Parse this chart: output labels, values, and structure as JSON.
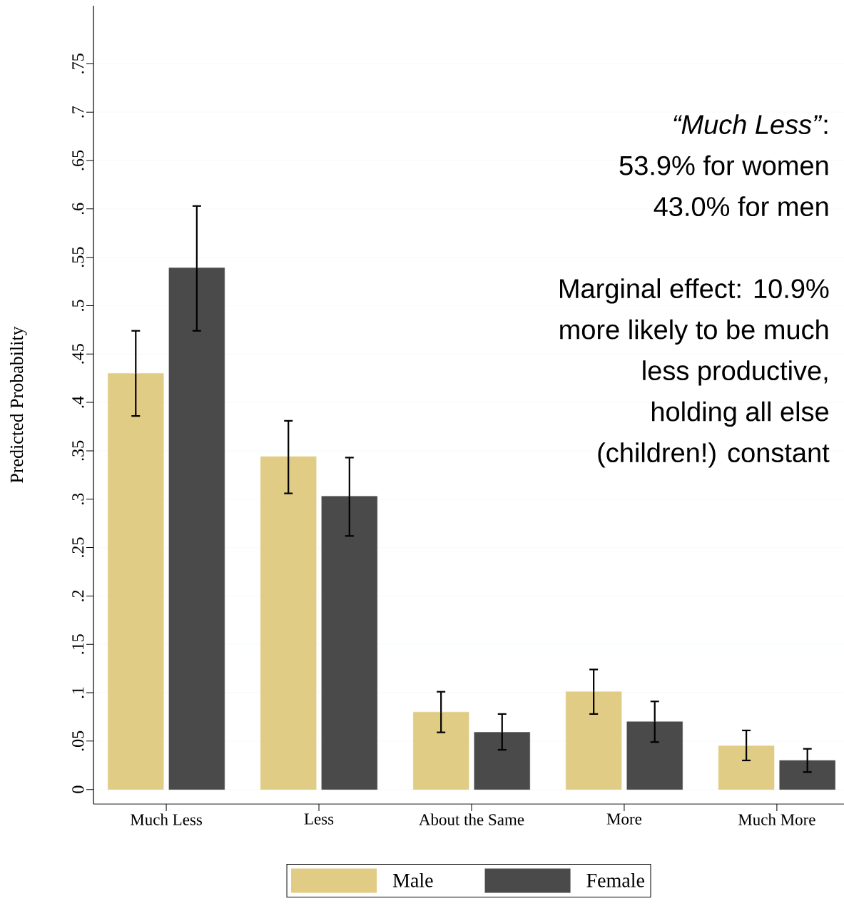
{
  "chart_data": {
    "type": "bar",
    "ylabel": "Predicted Probability",
    "categories": [
      "Much Less",
      "Less",
      "About the Same",
      "More",
      "Much More"
    ],
    "series": [
      {
        "name": "Male",
        "color": "#e0cc84",
        "values": [
          0.43,
          0.344,
          0.08,
          0.101,
          0.045
        ],
        "errors": [
          [
            0.386,
            0.474
          ],
          [
            0.306,
            0.381
          ],
          [
            0.059,
            0.101
          ],
          [
            0.078,
            0.124
          ],
          [
            0.03,
            0.061
          ]
        ]
      },
      {
        "name": "Female",
        "color": "#4a4a4a",
        "values": [
          0.539,
          0.303,
          0.059,
          0.07,
          0.03
        ],
        "errors": [
          [
            0.474,
            0.603
          ],
          [
            0.262,
            0.343
          ],
          [
            0.041,
            0.078
          ],
          [
            0.049,
            0.091
          ],
          [
            0.018,
            0.042
          ]
        ]
      }
    ],
    "ylim": [
      -0.015,
      0.81
    ],
    "yticks": [
      {
        "value": 0,
        "label": "0"
      },
      {
        "value": 0.05,
        "label": ".05"
      },
      {
        "value": 0.1,
        "label": ".1"
      },
      {
        "value": 0.15,
        "label": ".15"
      },
      {
        "value": 0.2,
        "label": ".2"
      },
      {
        "value": 0.25,
        "label": ".25"
      },
      {
        "value": 0.3,
        "label": ".3"
      },
      {
        "value": 0.35,
        "label": ".35"
      },
      {
        "value": 0.4,
        "label": ".4"
      },
      {
        "value": 0.45,
        "label": ".45"
      },
      {
        "value": 0.5,
        "label": ".5"
      },
      {
        "value": 0.55,
        "label": ".55"
      },
      {
        "value": 0.6,
        "label": ".6"
      },
      {
        "value": 0.65,
        "label": ".65"
      },
      {
        "value": 0.7,
        "label": ".7"
      },
      {
        "value": 0.75,
        "label": ".75"
      }
    ],
    "grid": "y",
    "legend": "bottom",
    "annotations": [
      "*“Much Less”*:",
      "53.9% for women",
      "43.0% for men",
      "Marginal effect: 10.9%",
      "more likely to be much",
      "less productive,",
      "holding all else",
      "(children!) constant"
    ]
  }
}
